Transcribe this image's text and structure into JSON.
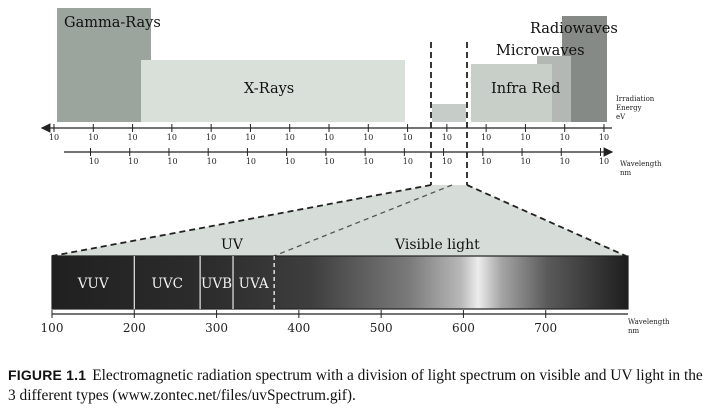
{
  "bands": {
    "gamma": "Gamma-Rays",
    "xray": "X-Rays",
    "infrared": "Infra Red",
    "microwaves": "Microwaves",
    "radiowaves": "Radiowaves"
  },
  "energy_axis": {
    "label_line1": "Irradiation",
    "label_line2": "Energy",
    "label_line3": "eV",
    "tick_label": "10",
    "tick_count": 15
  },
  "wavelength_axis_top": {
    "label_line1": "Wavelength",
    "label_line2": "nm",
    "tick_label": "10",
    "tick_count": 14
  },
  "spectrum": {
    "uv_label": "UV",
    "visible_label": "Visible light",
    "segments": [
      "VUV",
      "UVC",
      "UVB",
      "UVA"
    ],
    "scale_min": 100,
    "scale_max": 800,
    "boundaries": [
      200,
      280,
      320,
      370
    ],
    "ticks": [
      100,
      200,
      300,
      400,
      500,
      600,
      700
    ],
    "axis_label_line1": "Wavelength",
    "axis_label_line2": "nm"
  },
  "caption": {
    "label": "FIGURE 1.1",
    "text": "Electromagnetic radiation spectrum with a division of light spectrum on visible and UV light in the 3 different types (www.zontec.net/files/uvSpectrum.gif)."
  },
  "colors": {
    "gamma": "#9ca49e",
    "xray": "#d9e0da",
    "infrared": "#c8cfc9",
    "microwaves": "#b3b8b4",
    "radiowaves": "#868a87",
    "visible_window": "#c6ccc7"
  }
}
